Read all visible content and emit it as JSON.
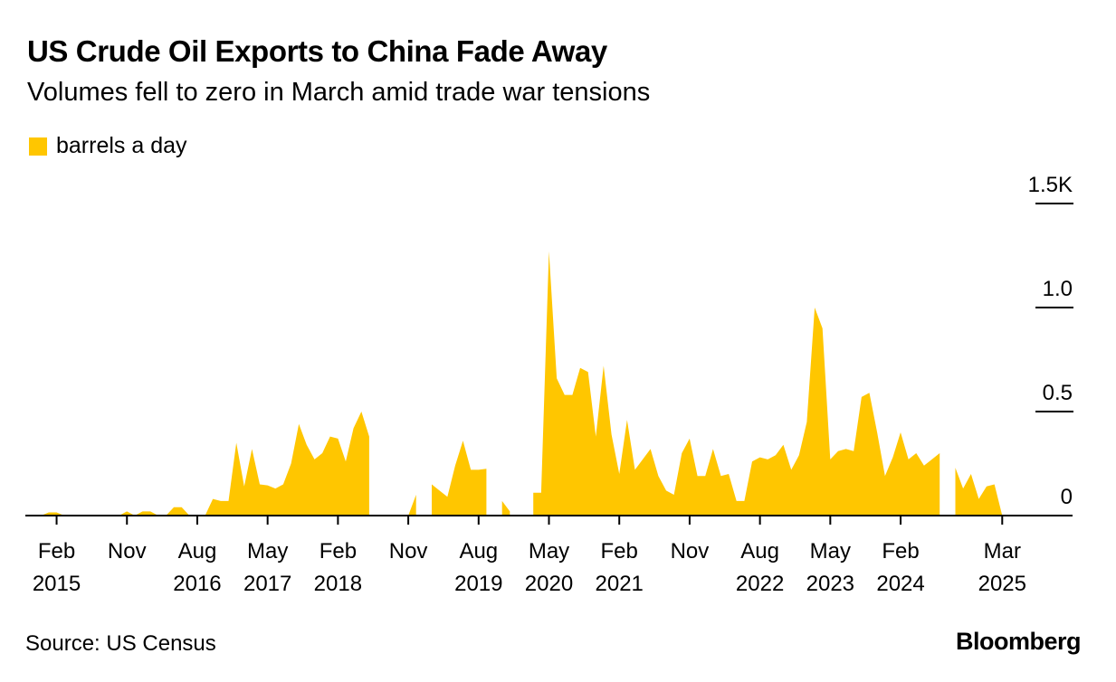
{
  "header": {
    "title": "US Crude Oil Exports to China Fade Away",
    "subtitle": "Volumes fell to zero in March amid trade war tensions"
  },
  "colors": {
    "series": "#FFC600",
    "axis": "#000000"
  },
  "footer": {
    "source": "Source: US Census",
    "brand": "Bloomberg"
  },
  "chart_data": {
    "type": "area",
    "title": "US Crude Oil Exports to China Fade Away",
    "subtitle": "Volumes fell to zero in March amid trade war tensions",
    "legend": [
      "barrels a day"
    ],
    "legend_position": "top-left",
    "units": "thousand barrels a day",
    "ylim": [
      0,
      1.5
    ],
    "y_ticks": [
      {
        "value": 0,
        "label": "0"
      },
      {
        "value": 0.5,
        "label": "0.5"
      },
      {
        "value": 1.0,
        "label": "1.0"
      },
      {
        "value": 1.5,
        "label": "1.5K"
      }
    ],
    "x_ticks": [
      {
        "t": 1,
        "line1": "Feb",
        "line2": "2015"
      },
      {
        "t": 10,
        "line1": "Nov",
        "line2": ""
      },
      {
        "t": 19,
        "line1": "Aug",
        "line2": "2016"
      },
      {
        "t": 28,
        "line1": "May",
        "line2": "2017"
      },
      {
        "t": 37,
        "line1": "Feb",
        "line2": "2018"
      },
      {
        "t": 46,
        "line1": "Nov",
        "line2": ""
      },
      {
        "t": 55,
        "line1": "Aug",
        "line2": "2019"
      },
      {
        "t": 64,
        "line1": "May",
        "line2": "2020"
      },
      {
        "t": 73,
        "line1": "Feb",
        "line2": "2021"
      },
      {
        "t": 82,
        "line1": "Nov",
        "line2": ""
      },
      {
        "t": 91,
        "line1": "Aug",
        "line2": "2022"
      },
      {
        "t": 100,
        "line1": "May",
        "line2": "2023"
      },
      {
        "t": 109,
        "line1": "Feb",
        "line2": "2024"
      },
      {
        "t": 122,
        "line1": "Mar",
        "line2": "2025"
      }
    ],
    "x_range": [
      -3,
      131
    ],
    "series": [
      {
        "name": "barrels a day",
        "t_start": -3,
        "values": [
          0,
          0,
          0,
          0.015,
          0.015,
          0,
          0,
          0,
          0,
          0,
          0,
          0,
          0,
          0.02,
          0,
          0.02,
          0.02,
          0,
          0,
          0.04,
          0.04,
          0,
          0,
          0,
          0.08,
          0.07,
          0.07,
          0.35,
          0.14,
          0.32,
          0.15,
          0.145,
          0.13,
          0.15,
          0.25,
          0.44,
          0.34,
          0.27,
          0.3,
          0.38,
          0.37,
          0.26,
          0.42,
          0.5,
          0.38,
          null,
          null,
          null,
          null,
          0,
          0.1,
          null,
          0.15,
          0.12,
          0.09,
          0.24,
          0.36,
          0.22,
          0.22,
          0.225,
          null,
          0.07,
          0.02,
          null,
          null,
          0.11,
          0.11,
          1.27,
          0.66,
          0.58,
          0.58,
          0.71,
          0.69,
          0.38,
          0.72,
          0.39,
          0.2,
          0.46,
          0.22,
          0.27,
          0.32,
          0.19,
          0.12,
          0.1,
          0.3,
          0.37,
          0.19,
          0.19,
          0.32,
          0.19,
          0.2,
          0.07,
          0.07,
          0.26,
          0.28,
          0.27,
          0.29,
          0.34,
          0.22,
          0.29,
          0.45,
          1.0,
          0.9,
          0.27,
          0.31,
          0.32,
          0.31,
          0.57,
          0.59,
          0.4,
          0.19,
          0.28,
          0.4,
          0.27,
          0.3,
          0.24,
          0.27,
          0.3,
          null,
          0.23,
          0.13,
          0.2,
          0.08,
          0.14,
          0.15,
          0,
          0,
          0,
          0,
          0,
          0,
          0,
          0,
          0,
          0
        ]
      }
    ]
  }
}
